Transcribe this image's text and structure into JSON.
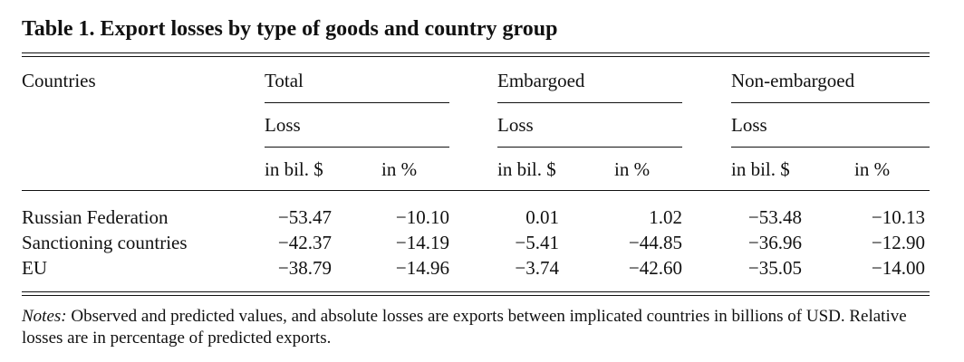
{
  "title": "Table 1. Export losses by type of goods and country group",
  "header": {
    "countries": "Countries",
    "groups": [
      {
        "label": "Total",
        "sub": "Loss",
        "units": [
          "in bil. $",
          "in %"
        ]
      },
      {
        "label": "Embargoed",
        "sub": "Loss",
        "units": [
          "in bil. $",
          "in %"
        ]
      },
      {
        "label": "Non-embargoed",
        "sub": "Loss",
        "units": [
          "in bil. $",
          "in %"
        ]
      }
    ]
  },
  "rows": [
    {
      "country": "Russian Federation",
      "values": [
        "−53.47",
        "−10.10",
        "0.01",
        "1.02",
        "−53.48",
        "−10.13"
      ]
    },
    {
      "country": "Sanctioning countries",
      "values": [
        "−42.37",
        "−14.19",
        "−5.41",
        "−44.85",
        "−36.96",
        "−12.90"
      ]
    },
    {
      "country": "EU",
      "values": [
        "−38.79",
        "−14.96",
        "−3.74",
        "−42.60",
        "−35.05",
        "−14.00"
      ]
    }
  ],
  "notes": {
    "label": "Notes:",
    "text": " Observed and predicted values, and absolute losses are exports between implicated countries in billions of USD. Relative losses are in percentage of predicted exports."
  }
}
